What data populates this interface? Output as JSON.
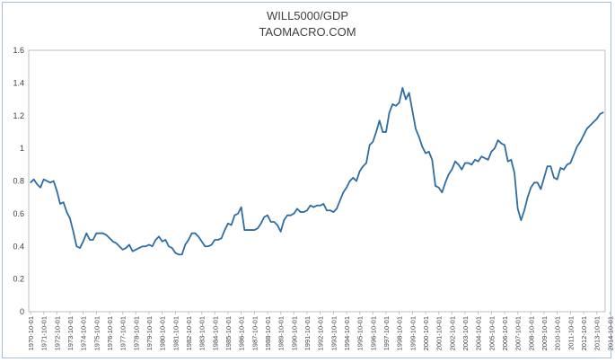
{
  "chart_data": {
    "type": "line",
    "title": "WILL5000/GDP",
    "subtitle": "TAOMACRO.COM",
    "xlabel": "",
    "ylabel": "",
    "ylim": [
      0,
      1.6
    ],
    "yticks": [
      "0",
      "0.2",
      "0.4",
      "0.6",
      "0.8",
      "1",
      "1.2",
      "1.4",
      "1.6"
    ],
    "grid": false,
    "legend": "none",
    "line_color": "#2e6da4",
    "x_start": "1970-10-01",
    "x_step": "quarter",
    "xtick_labels": [
      "1970-10-01",
      "1971-10-01",
      "1972-10-01",
      "1973-10-01",
      "1974-10-01",
      "1975-10-01",
      "1976-10-01",
      "1977-10-01",
      "1978-10-01",
      "1979-10-01",
      "1980-10-01",
      "1981-10-01",
      "1982-10-01",
      "1983-10-01",
      "1984-10-01",
      "1985-10-01",
      "1986-10-01",
      "1987-10-01",
      "1988-10-01",
      "1989-10-01",
      "1990-10-01",
      "1991-10-01",
      "1992-10-01",
      "1993-10-01",
      "1994-10-01",
      "1995-10-01",
      "1996-10-01",
      "1997-10-01",
      "1998-10-01",
      "1999-10-01",
      "2000-10-01",
      "2001-10-01",
      "2002-10-01",
      "2003-10-01",
      "2004-10-01",
      "2005-10-01",
      "2006-10-01",
      "2007-10-01",
      "2008-10-01",
      "2009-10-01",
      "2010-10-01",
      "2011-10-01",
      "2012-10-01",
      "2013-10-01",
      "2014-10-01"
    ],
    "series": [
      {
        "values": [
          0.79,
          0.81,
          0.78,
          0.76,
          0.81,
          0.8,
          0.79,
          0.8,
          0.74,
          0.66,
          0.67,
          0.61,
          0.57,
          0.49,
          0.4,
          0.39,
          0.43,
          0.48,
          0.44,
          0.44,
          0.48,
          0.48,
          0.48,
          0.47,
          0.45,
          0.43,
          0.42,
          0.4,
          0.38,
          0.39,
          0.41,
          0.37,
          0.38,
          0.39,
          0.4,
          0.4,
          0.41,
          0.4,
          0.44,
          0.46,
          0.43,
          0.44,
          0.4,
          0.39,
          0.36,
          0.35,
          0.35,
          0.41,
          0.44,
          0.48,
          0.48,
          0.46,
          0.43,
          0.4,
          0.4,
          0.41,
          0.44,
          0.44,
          0.45,
          0.5,
          0.54,
          0.53,
          0.59,
          0.6,
          0.64,
          0.5,
          0.5,
          0.5,
          0.5,
          0.51,
          0.54,
          0.58,
          0.59,
          0.55,
          0.55,
          0.53,
          0.49,
          0.56,
          0.59,
          0.59,
          0.6,
          0.63,
          0.61,
          0.61,
          0.62,
          0.65,
          0.64,
          0.65,
          0.65,
          0.66,
          0.62,
          0.62,
          0.61,
          0.63,
          0.68,
          0.73,
          0.76,
          0.8,
          0.82,
          0.8,
          0.86,
          0.89,
          0.91,
          1.02,
          1.04,
          1.1,
          1.17,
          1.1,
          1.1,
          1.22,
          1.27,
          1.26,
          1.28,
          1.37,
          1.3,
          1.34,
          1.23,
          1.12,
          1.07,
          1.01,
          0.97,
          0.98,
          0.93,
          0.77,
          0.76,
          0.73,
          0.79,
          0.84,
          0.87,
          0.92,
          0.9,
          0.87,
          0.91,
          0.91,
          0.9,
          0.93,
          0.92,
          0.95,
          0.94,
          0.93,
          0.98,
          1.0,
          1.05,
          1.03,
          1.02,
          0.92,
          0.93,
          0.85,
          0.63,
          0.56,
          0.62,
          0.7,
          0.76,
          0.79,
          0.79,
          0.75,
          0.82,
          0.89,
          0.89,
          0.82,
          0.81,
          0.88,
          0.87,
          0.9,
          0.91,
          0.96,
          1.01,
          1.04,
          1.08,
          1.12,
          1.14,
          1.16,
          1.18,
          1.21,
          1.22
        ]
      }
    ]
  }
}
